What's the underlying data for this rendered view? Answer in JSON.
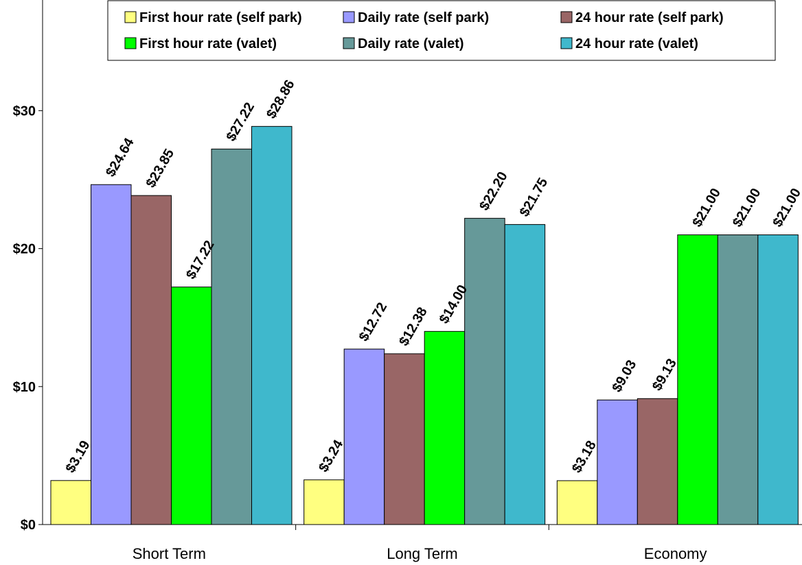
{
  "chart_data": {
    "type": "bar",
    "categories": [
      "Short Term",
      "Long Term",
      "Economy"
    ],
    "series": [
      {
        "name": "First hour rate (self park)",
        "color": "#FFFF80",
        "values": [
          3.19,
          3.24,
          3.18
        ],
        "labels": [
          "$3.19",
          "$3.24",
          "$3.18"
        ]
      },
      {
        "name": "Daily rate (self park)",
        "color": "#9999FF",
        "values": [
          24.64,
          12.72,
          9.03
        ],
        "labels": [
          "$24.64",
          "$12.72",
          "$9.03"
        ]
      },
      {
        "name": "24 hour rate (self park)",
        "color": "#996666",
        "values": [
          23.85,
          12.38,
          9.13
        ],
        "labels": [
          "$23.85",
          "$12.38",
          "$9.13"
        ]
      },
      {
        "name": "First hour rate (valet)",
        "color": "#00FF00",
        "values": [
          17.22,
          14.0,
          21.0
        ],
        "labels": [
          "$17.22",
          "$14.00",
          "$21.00"
        ]
      },
      {
        "name": "Daily rate (valet)",
        "color": "#669999",
        "values": [
          27.22,
          22.2,
          21.0
        ],
        "labels": [
          "$27.22",
          "$22.20",
          "$21.00"
        ]
      },
      {
        "name": "24 hour rate (valet)",
        "color": "#3FB8CC",
        "values": [
          28.86,
          21.75,
          21.0
        ],
        "labels": [
          "$28.86",
          "$21.75",
          "$21.00"
        ]
      }
    ],
    "yticks": [
      {
        "value": 0,
        "label": "$0"
      },
      {
        "value": 10,
        "label": "$10"
      },
      {
        "value": 20,
        "label": "$20"
      },
      {
        "value": 30,
        "label": "$30"
      }
    ],
    "ylim": [
      0,
      37.5
    ],
    "grid": false,
    "legend": "top",
    "title": "",
    "xlabel": "",
    "ylabel": ""
  }
}
